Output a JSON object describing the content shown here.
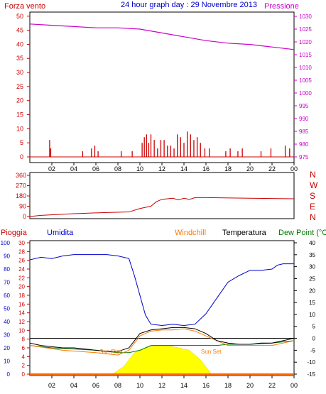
{
  "header": {
    "title": "24 hour graph day : 29 Novembre 2013",
    "wind_label": "Forza vento",
    "pressure_label": "Pressione"
  },
  "legend": {
    "rain": "Pioggia",
    "humidity": "Umidita",
    "windchill": "Windchill",
    "temperature": "Temperatura",
    "dewpoint": "Dew Point (°C"
  },
  "annotations": {
    "sunrise": "Sun Rise",
    "sunset": "Sun Set"
  },
  "colors": {
    "wind": "#cc0000",
    "pressure": "#cc00cc",
    "humidity": "#0000cc",
    "temperature": "#000000",
    "windchill": "#ff7700",
    "dewpoint": "#007700",
    "sun": "#ffff00",
    "direction": "#cc0000"
  },
  "chart_data": [
    {
      "type": "line",
      "panel": "wind-pressure",
      "x_ticks": [
        "02",
        "04",
        "06",
        "08",
        "10",
        "12",
        "14",
        "16",
        "18",
        "20",
        "22",
        "00"
      ],
      "left_axis": {
        "ticks": [
          "0",
          "5",
          "10",
          "15",
          "20",
          "25",
          "30",
          "35",
          "40",
          "45",
          "50"
        ],
        "ylim": [
          0,
          50
        ]
      },
      "right_axis": {
        "ticks": [
          "975",
          "980",
          "985",
          "990",
          "995",
          "1000",
          "1005",
          "1010",
          "1015",
          "1020",
          "1025",
          "1030"
        ],
        "ylim": [
          975,
          1030
        ]
      },
      "series": [
        {
          "name": "Pressione",
          "x": [
            0,
            2,
            4,
            6,
            8,
            10,
            12,
            14,
            16,
            18,
            20,
            22,
            24
          ],
          "values": [
            1027,
            1026.5,
            1026,
            1025.5,
            1025.5,
            1025,
            1023.5,
            1022,
            1020.5,
            1019.5,
            1019,
            1018,
            1017
          ]
        },
        {
          "name": "Forza vento",
          "x": [
            1.8,
            1.9,
            4.8,
            5.6,
            5.9,
            6.2,
            8.3,
            9.3,
            10.2,
            10.4,
            10.6,
            10.8,
            11.0,
            11.3,
            11.6,
            11.9,
            12.2,
            12.5,
            12.8,
            13.1,
            13.4,
            13.7,
            14.0,
            14.3,
            14.6,
            14.9,
            15.2,
            15.5,
            15.9,
            16.3,
            17.8,
            18.2,
            18.9,
            19.3,
            21.0,
            21.9,
            23.2,
            23.6
          ],
          "values": [
            6,
            3,
            2,
            3,
            4,
            2,
            2,
            2,
            5,
            7,
            8,
            5,
            8,
            6,
            3,
            6,
            6,
            4,
            4,
            3,
            8,
            7,
            5,
            9,
            8,
            6,
            7,
            5,
            3,
            3,
            2,
            3,
            2,
            3,
            2,
            3,
            4,
            3
          ]
        }
      ]
    },
    {
      "type": "line",
      "panel": "wind-direction",
      "left_axis": {
        "ticks": [
          "0",
          "90",
          "180",
          "270",
          "360"
        ],
        "ylim": [
          0,
          360
        ]
      },
      "right_axis": {
        "ticks": [
          "N",
          "E",
          "S",
          "W",
          "N"
        ]
      },
      "series": [
        {
          "name": "Direzione",
          "x": [
            0,
            1,
            4,
            7,
            9,
            10,
            10.5,
            11,
            11.5,
            12,
            12.5,
            13,
            13.5,
            14,
            14.5,
            15,
            16,
            20,
            24
          ],
          "values": [
            0,
            10,
            25,
            35,
            40,
            70,
            80,
            90,
            130,
            150,
            155,
            160,
            145,
            160,
            150,
            165,
            165,
            160,
            155
          ]
        }
      ]
    },
    {
      "type": "line",
      "panel": "thermo-hygro",
      "left_axis_humidity": {
        "ticks": [
          "0",
          "10",
          "20",
          "30",
          "40",
          "50",
          "60",
          "70",
          "80",
          "90",
          "100"
        ],
        "ylim": [
          0,
          100
        ]
      },
      "left_axis_rain": {
        "ticks": [
          "0",
          "2",
          "4",
          "6",
          "8",
          "10",
          "12",
          "14",
          "16",
          "18",
          "20",
          "22",
          "24",
          "26",
          "28",
          "30"
        ],
        "ylim": [
          0,
          30
        ]
      },
      "right_axis_temp": {
        "ticks": [
          "-15",
          "-10",
          "-5",
          "0",
          "5",
          "10",
          "15",
          "20",
          "25",
          "30",
          "35",
          "40"
        ],
        "ylim": [
          -15,
          40
        ]
      },
      "series": [
        {
          "name": "Umidita",
          "x": [
            0,
            1,
            2,
            3,
            4,
            5,
            6,
            7,
            8,
            9,
            9.5,
            10,
            10.5,
            11,
            12,
            13,
            14,
            15,
            16,
            17,
            18,
            19,
            20,
            21,
            22,
            22.5,
            23,
            24
          ],
          "values": [
            87,
            89,
            88,
            90,
            91,
            91,
            91,
            91,
            90,
            88,
            75,
            60,
            45,
            38,
            37,
            38,
            37,
            38,
            46,
            58,
            70,
            75,
            79,
            79,
            80,
            83,
            84,
            84
          ]
        },
        {
          "name": "Temperatura",
          "x": [
            0,
            1,
            2,
            3,
            4,
            5,
            6,
            7,
            8,
            9,
            9.5,
            10,
            11,
            12,
            13,
            14,
            15,
            16,
            17,
            18,
            19,
            20,
            21,
            22,
            23,
            24
          ],
          "values": [
            -2,
            -3,
            -3.5,
            -4,
            -4,
            -4.5,
            -5,
            -5.5,
            -5.5,
            -4,
            -1,
            2,
            3.5,
            4,
            4.5,
            4.5,
            4,
            2,
            -1,
            -2,
            -2.5,
            -2.5,
            -2,
            -2,
            -1,
            0
          ]
        },
        {
          "name": "Windchill",
          "x": [
            0,
            3,
            6,
            8,
            9,
            10,
            11,
            12,
            13,
            14,
            15,
            16,
            18,
            20,
            22,
            24
          ],
          "values": [
            -3,
            -5,
            -6,
            -7,
            -5,
            1,
            3,
            3.5,
            3.5,
            4,
            3,
            1,
            -3,
            -3,
            -3,
            -1
          ]
        },
        {
          "name": "Dew Point",
          "x": [
            0,
            2,
            4,
            6,
            8,
            9,
            10,
            11,
            12,
            13,
            14,
            15,
            16,
            17,
            18,
            20,
            22,
            24
          ],
          "values": [
            -3,
            -4,
            -4.5,
            -5,
            -6,
            -6,
            -5,
            -3,
            -3,
            -3,
            -3,
            -3,
            -3,
            -3,
            -2.5,
            -2.5,
            -2,
            -1
          ]
        },
        {
          "name": "Sole",
          "x": [
            7.5,
            8.5,
            9.5,
            10.5,
            11.5,
            12.5,
            13.5,
            14.5,
            15.5,
            16.5
          ],
          "values": [
            -15,
            -12,
            -6,
            -4,
            -3,
            -3,
            -4,
            -5,
            -9,
            -15
          ]
        },
        {
          "name": "Pioggia",
          "x": [
            0,
            24
          ],
          "values": [
            0,
            0
          ]
        }
      ]
    }
  ]
}
